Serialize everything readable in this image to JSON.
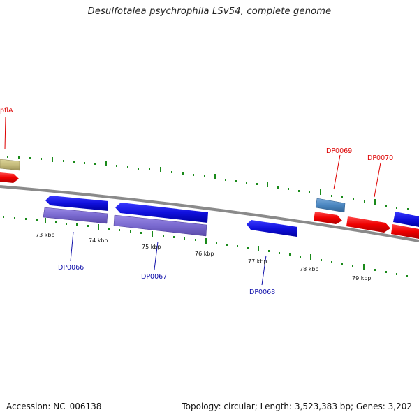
{
  "title": "Desulfotalea psychrophila LSv54, complete genome",
  "footer": {
    "accession": "Accession: NC_006138",
    "summary": "Topology: circular; Length: 3,523,383 bp; Genes: 3,202"
  },
  "colors": {
    "forward_gene": "#ee0000",
    "reverse_gene": "#1010dd",
    "rna_gene": "#4a86c0",
    "cds_feature": "#7a6ad0",
    "misc_feature": "#c6bc7c",
    "backbone": "#8a8a8a",
    "ticks": "#1a8a1a"
  },
  "scale_labels": [
    "73 kbp",
    "74 kbp",
    "75 kbp",
    "76 kbp",
    "77 kbp",
    "78 kbp",
    "79 kbp"
  ],
  "gene_labels": [
    {
      "text": "pflA",
      "strand": "forward"
    },
    {
      "text": "DP0069",
      "strand": "forward"
    },
    {
      "text": "DP0070",
      "strand": "forward"
    },
    {
      "text": "DP0066",
      "strand": "reverse"
    },
    {
      "text": "DP0067",
      "strand": "reverse"
    },
    {
      "text": "DP0068",
      "strand": "reverse"
    }
  ]
}
